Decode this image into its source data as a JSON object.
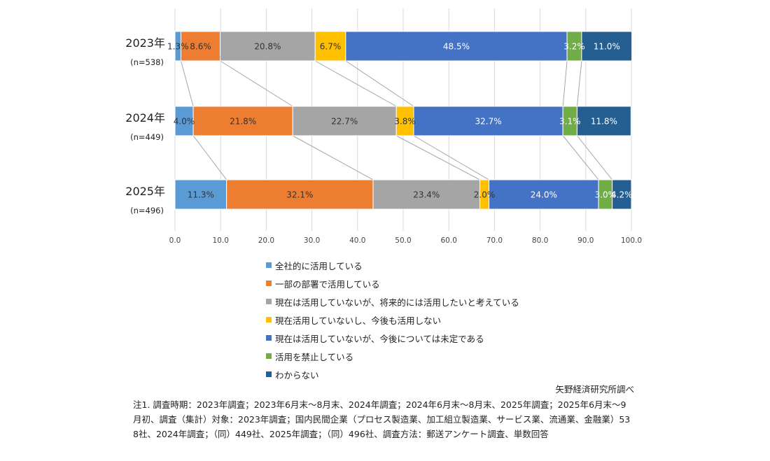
{
  "chart_data": {
    "type": "bar",
    "orientation": "horizontal",
    "stacked": true,
    "categories": [
      "2023年",
      "2024年",
      "2025年"
    ],
    "sample_sizes": [
      "(n=538)",
      "(n=449)",
      "(n=496)"
    ],
    "series": [
      {
        "name": "全社的に活用している",
        "color": "#5b9bd5",
        "values": [
          1.3,
          4.0,
          11.3
        ],
        "labels": [
          "1.3%",
          "4.0%",
          "11.3%"
        ]
      },
      {
        "name": "一部の部署で活用している",
        "color": "#ed7d31",
        "values": [
          8.6,
          21.8,
          32.1
        ],
        "labels": [
          "8.6%",
          "21.8%",
          "32.1%"
        ]
      },
      {
        "name": "現在は活用していないが、将来的には活用したいと考えている",
        "color": "#a5a5a5",
        "values": [
          20.8,
          22.7,
          23.4
        ],
        "labels": [
          "20.8%",
          "22.7%",
          "23.4%"
        ]
      },
      {
        "name": "現在活用していないし、今後も活用しない",
        "color": "#ffc000",
        "values": [
          6.7,
          3.8,
          2.0
        ],
        "labels": [
          "6.7%",
          "3.8%",
          "2.0%"
        ]
      },
      {
        "name": "現在は活用していないが、今後については未定である",
        "color": "#4472c4",
        "values": [
          48.5,
          32.7,
          24.0
        ],
        "labels": [
          "48.5%",
          "32.7%",
          "24.0%"
        ]
      },
      {
        "name": "活用を禁止している",
        "color": "#70ad47",
        "values": [
          3.2,
          3.1,
          3.0
        ],
        "labels": [
          "3.2%",
          "3.1%",
          "3.0%"
        ]
      },
      {
        "name": "わからない",
        "color": "#255e91",
        "values": [
          11.0,
          11.8,
          4.2
        ],
        "labels": [
          "11.0%",
          "11.8%",
          "4.2%"
        ]
      }
    ],
    "x_ticks": [
      "0.0",
      "10.0",
      "20.0",
      "30.0",
      "40.0",
      "50.0",
      "60.0",
      "70.0",
      "80.0",
      "90.0",
      "100.0"
    ],
    "xlim": [
      0,
      100
    ],
    "grid": true,
    "legend_position": "bottom",
    "series_lines": true
  },
  "source": "矢野経済研究所調べ",
  "note": "注1. 調査時期：2023年調査；2023年6月末～8月末、2024年調査；2024年6月末～8月末、2025年調査；2025年6月末～9月初、調査（集計）対象：2023年調査；国内民間企業（プロセス製造業、加工組立製造業、サービス業、流通業、金融業）538社、2024年調査；（同）449社、2025年調査；（同）496社、調査方法：郵送アンケート調査、単数回答"
}
